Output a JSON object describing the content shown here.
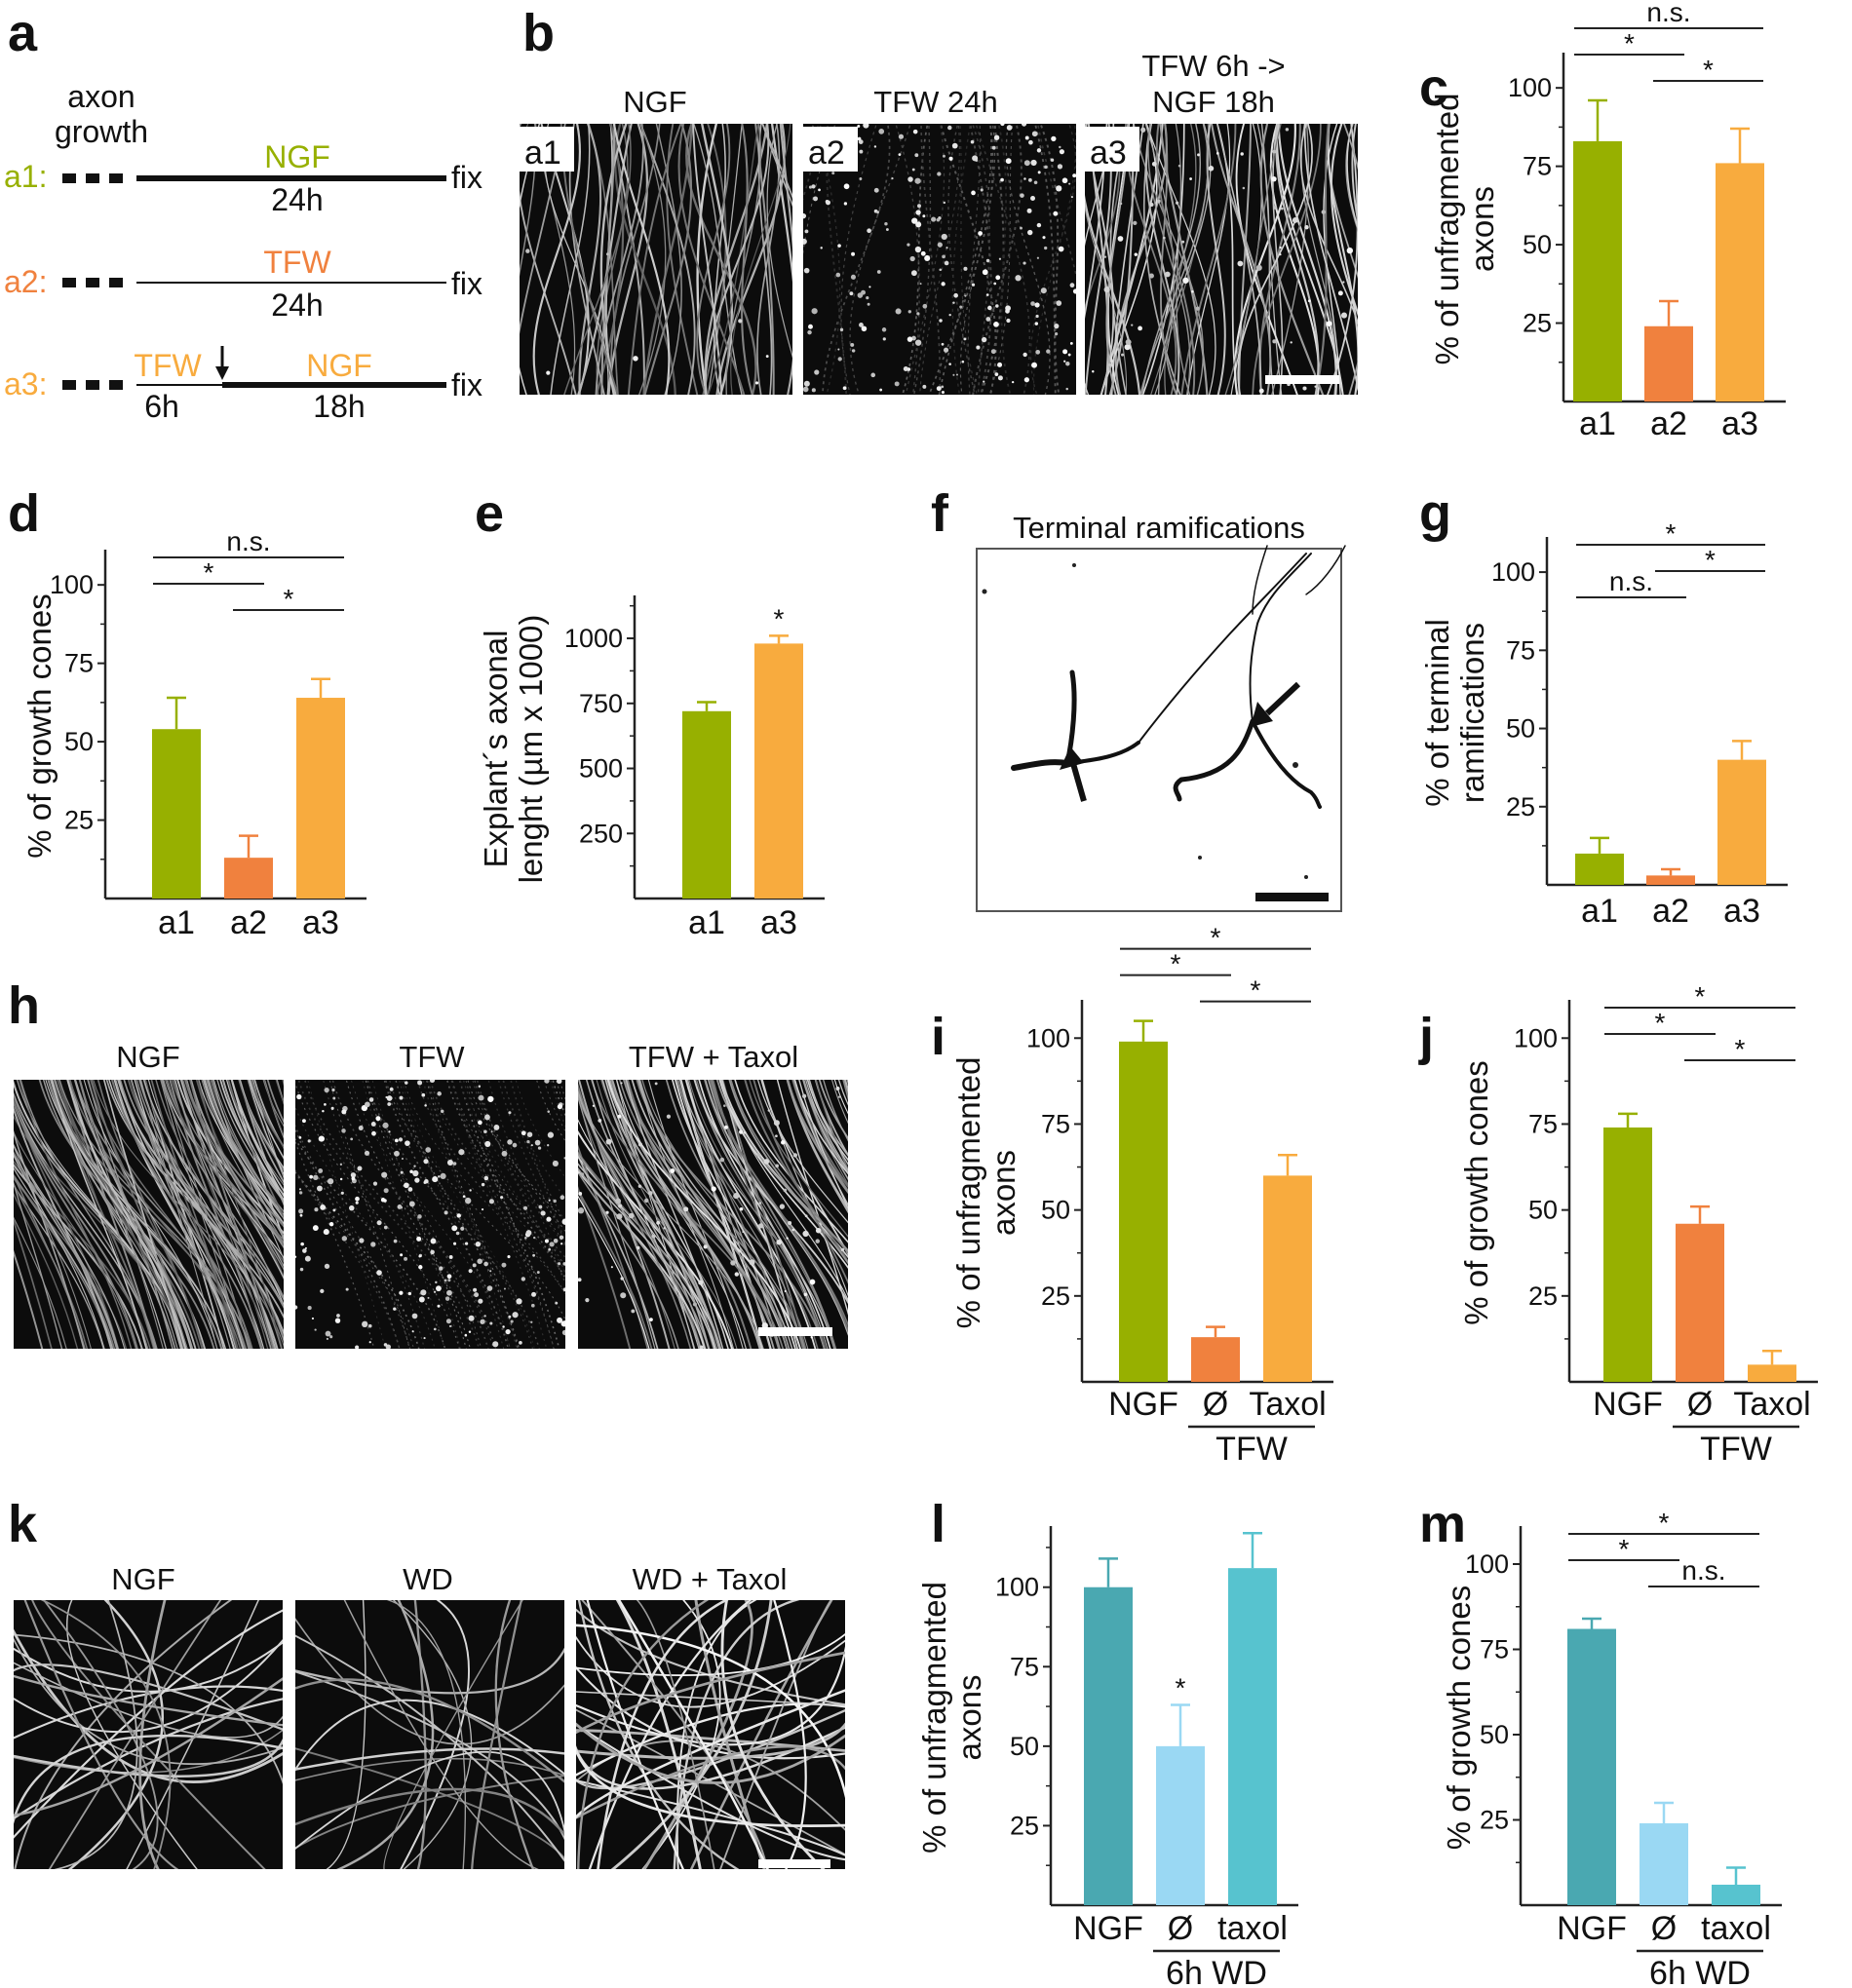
{
  "panel_letters": [
    "a",
    "b",
    "c",
    "d",
    "e",
    "f",
    "g",
    "h",
    "i",
    "j",
    "k",
    "l",
    "m"
  ],
  "colors": {
    "green": "#97b000",
    "orange": "#f0813e",
    "yellow": "#f8ab3e",
    "teal": "#4aa8b1",
    "lightblue": "#9ad8f3",
    "cyan": "#57c3cf"
  },
  "schematic": {
    "title_line1": "axon",
    "title_line2": "growth",
    "rows": [
      {
        "tag": "a1:",
        "label": "NGF",
        "duration": "24h",
        "end": "fix"
      },
      {
        "tag": "a2:",
        "label": "TFW",
        "duration": "24h",
        "end": "fix"
      },
      {
        "tag": "a3:",
        "label1": "TFW",
        "label2": "NGF",
        "duration1": "6h",
        "duration2": "18h",
        "end": "fix"
      }
    ]
  },
  "micrographs": {
    "b": {
      "titles": [
        "NGF",
        "TFW 24h",
        "TFW 6h ->",
        "NGF 18h"
      ],
      "tags": [
        "a1",
        "a2",
        "a3"
      ]
    },
    "f": {
      "title": "Terminal ramifications"
    },
    "h": {
      "titles": [
        "NGF",
        "TFW",
        "TFW + Taxol"
      ]
    },
    "k": {
      "titles": [
        "NGF",
        "WD",
        "WD + Taxol"
      ]
    }
  },
  "chart_data": [
    {
      "panel": "c",
      "type": "bar",
      "ylabel_line1": "% of unfragmented",
      "ylabel_line2": "axons",
      "ylim": [
        0,
        110
      ],
      "yticks": [
        25,
        50,
        75,
        100
      ],
      "categories": [
        "a1",
        "a2",
        "a3"
      ],
      "values": [
        83,
        24,
        76
      ],
      "errors": [
        13,
        8,
        11
      ],
      "color_keys": [
        "green",
        "orange",
        "yellow"
      ],
      "significance": [
        {
          "from": 0,
          "to": 1,
          "label": "*",
          "level": 1
        },
        {
          "from": 1,
          "to": 2,
          "label": "*",
          "level": 0
        },
        {
          "from": 0,
          "to": 2,
          "label": "n.s.",
          "level": 2
        }
      ]
    },
    {
      "panel": "d",
      "type": "bar",
      "ylabel_line1": "% of growth cones",
      "ylim": [
        0,
        110
      ],
      "yticks": [
        25,
        50,
        75,
        100
      ],
      "categories": [
        "a1",
        "a2",
        "a3"
      ],
      "values": [
        54,
        13,
        64
      ],
      "errors": [
        10,
        7,
        6
      ],
      "color_keys": [
        "green",
        "orange",
        "yellow"
      ],
      "significance": [
        {
          "from": 0,
          "to": 1,
          "label": "*",
          "level": 1
        },
        {
          "from": 1,
          "to": 2,
          "label": "*",
          "level": 0
        },
        {
          "from": 0,
          "to": 2,
          "label": "n.s.",
          "level": 2
        }
      ]
    },
    {
      "panel": "e",
      "type": "bar",
      "ylabel_line1": "Explant´s axonal",
      "ylabel_line2": "lenght (µm x 1000)",
      "ylim": [
        0,
        1150
      ],
      "yticks": [
        250,
        500,
        750,
        1000
      ],
      "categories": [
        "a1",
        "a3"
      ],
      "values": [
        720,
        980
      ],
      "errors": [
        35,
        30
      ],
      "color_keys": [
        "green",
        "yellow"
      ],
      "bar_marks": [
        "",
        "*"
      ]
    },
    {
      "panel": "g",
      "type": "bar",
      "ylabel_line1": "% of terminal",
      "ylabel_line2": "ramifications",
      "ylim": [
        0,
        110
      ],
      "yticks": [
        25,
        50,
        75,
        100
      ],
      "categories": [
        "a1",
        "a2",
        "a3"
      ],
      "values": [
        10,
        3,
        40
      ],
      "errors": [
        5,
        2,
        6
      ],
      "color_keys": [
        "green",
        "orange",
        "yellow"
      ],
      "significance": [
        {
          "from": 0,
          "to": 1,
          "label": "n.s.",
          "level": 0
        },
        {
          "from": 1,
          "to": 2,
          "label": "*",
          "level": 1
        },
        {
          "from": 0,
          "to": 2,
          "label": "*",
          "level": 2
        }
      ]
    },
    {
      "panel": "i",
      "type": "bar",
      "ylabel_line1": "% of unfragmented",
      "ylabel_line2": "axons",
      "ylim": [
        0,
        110
      ],
      "yticks": [
        25,
        50,
        75,
        100
      ],
      "categories": [
        "NGF",
        "Ø",
        "Taxol"
      ],
      "values": [
        99,
        13,
        60
      ],
      "errors": [
        6,
        3,
        6
      ],
      "color_keys": [
        "green",
        "orange",
        "yellow"
      ],
      "group_label": "TFW",
      "significance": [
        {
          "from": 0,
          "to": 1,
          "label": "*",
          "level": 1
        },
        {
          "from": 1,
          "to": 2,
          "label": "*",
          "level": 0
        },
        {
          "from": 0,
          "to": 2,
          "label": "*",
          "level": 2
        }
      ]
    },
    {
      "panel": "j",
      "type": "bar",
      "ylabel_line1": "% of growth cones",
      "ylim": [
        0,
        110
      ],
      "yticks": [
        25,
        50,
        75,
        100
      ],
      "categories": [
        "NGF",
        "Ø",
        "Taxol"
      ],
      "values": [
        74,
        46,
        5
      ],
      "errors": [
        4,
        5,
        4
      ],
      "color_keys": [
        "green",
        "orange",
        "yellow"
      ],
      "group_label": "TFW",
      "significance": [
        {
          "from": 0,
          "to": 1,
          "label": "*",
          "level": 1
        },
        {
          "from": 1,
          "to": 2,
          "label": "*",
          "level": 0
        },
        {
          "from": 0,
          "to": 2,
          "label": "*",
          "level": 2
        }
      ]
    },
    {
      "panel": "l",
      "type": "bar",
      "ylabel_line1": "% of unfragmented",
      "ylabel_line2": "axons",
      "ylim": [
        0,
        118
      ],
      "yticks": [
        25,
        50,
        75,
        100
      ],
      "categories": [
        "NGF",
        "Ø",
        "taxol"
      ],
      "values": [
        100,
        50,
        106
      ],
      "errors": [
        9,
        13,
        11
      ],
      "color_keys": [
        "teal",
        "lightblue",
        "cyan"
      ],
      "group_label": "6h WD",
      "bar_marks": [
        "",
        "*",
        ""
      ]
    },
    {
      "panel": "m",
      "type": "bar",
      "ylabel_line1": "% of growth cones",
      "ylim": [
        0,
        110
      ],
      "yticks": [
        25,
        50,
        75,
        100
      ],
      "categories": [
        "NGF",
        "Ø",
        "taxol"
      ],
      "values": [
        81,
        24,
        6
      ],
      "errors": [
        3,
        6,
        5
      ],
      "color_keys": [
        "teal",
        "lightblue",
        "cyan"
      ],
      "group_label": "6h WD",
      "significance": [
        {
          "from": 0,
          "to": 1,
          "label": "*",
          "level": 1
        },
        {
          "from": 1,
          "to": 2,
          "label": "n.s.",
          "level": 0
        },
        {
          "from": 0,
          "to": 2,
          "label": "*",
          "level": 2
        }
      ]
    }
  ]
}
